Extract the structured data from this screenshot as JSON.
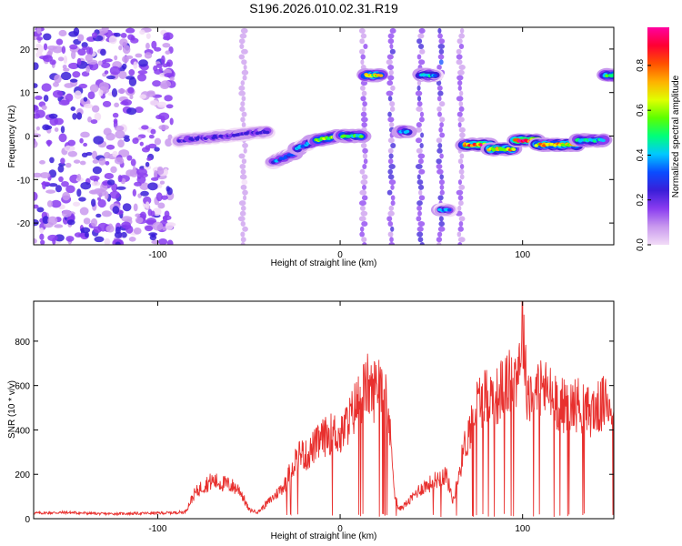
{
  "figure_title": "S196.2026.010.02.31.R19",
  "chart_data": [
    {
      "type": "heatmap",
      "title": "S196.2026.010.02.31.R19",
      "xlabel": "Height of straight line (km)",
      "ylabel": "Frequency (Hz)",
      "xlim": [
        -168,
        150
      ],
      "ylim": [
        -25,
        25
      ],
      "xticks": [
        -100,
        0,
        100
      ],
      "yticks": [
        -20,
        -10,
        0,
        10,
        20
      ],
      "colorbar": {
        "label": "Normalized spectral amplitude",
        "range": [
          0,
          0.97
        ],
        "ticks": [
          0.0,
          0.2,
          0.4,
          0.6,
          0.8
        ],
        "colormap": [
          "#f2dcf7",
          "#c999ee",
          "#8a3cf0",
          "#3a1ed8",
          "#0a4cff",
          "#00c8ff",
          "#00ff7a",
          "#5cff00",
          "#e0ff00",
          "#ffb000",
          "#ff5000",
          "#ff0033",
          "#ff00a0"
        ]
      },
      "noise_region": {
        "x": [
          -168,
          -92
        ],
        "y": [
          -25,
          25
        ],
        "level": 0.1
      },
      "ridges": [
        {
          "x": [
            -88,
            -40
          ],
          "y": [
            -1,
            1
          ],
          "level": 0.22
        },
        {
          "x": [
            -37,
            -25
          ],
          "y": [
            -6,
            -4
          ],
          "level": 0.32
        },
        {
          "x": [
            -24,
            -14
          ],
          "y": [
            -3,
            -1
          ],
          "level": 0.38
        },
        {
          "x": [
            -13,
            -1
          ],
          "y": [
            -1,
            0
          ],
          "level": 0.55
        },
        {
          "x": [
            1,
            12
          ],
          "y": [
            0,
            0
          ],
          "level": 0.5
        },
        {
          "x": [
            14,
            22
          ],
          "y": [
            14,
            14
          ],
          "level": 0.65
        },
        {
          "x": [
            44,
            52
          ],
          "y": [
            14,
            14
          ],
          "level": 0.4
        },
        {
          "x": [
            33,
            37
          ],
          "y": [
            1,
            1
          ],
          "level": 0.38
        },
        {
          "x": [
            55,
            60
          ],
          "y": [
            -17,
            -17
          ],
          "level": 0.35
        },
        {
          "x": [
            68,
            82
          ],
          "y": [
            -2,
            -2
          ],
          "level": 0.82
        },
        {
          "x": [
            82,
            95
          ],
          "y": [
            -3,
            -3
          ],
          "level": 0.7
        },
        {
          "x": [
            96,
            108
          ],
          "y": [
            -1,
            -1
          ],
          "level": 0.85
        },
        {
          "x": [
            108,
            130
          ],
          "y": [
            -2,
            -2
          ],
          "level": 0.7
        },
        {
          "x": [
            130,
            144
          ],
          "y": [
            -1,
            -1
          ],
          "level": 0.45
        },
        {
          "x": [
            145,
            150
          ],
          "y": [
            14,
            14
          ],
          "level": 0.5
        }
      ],
      "vertical_streaks": [
        {
          "x": -53,
          "y": [
            -25,
            25
          ],
          "level": 0.08
        },
        {
          "x": 13,
          "y": [
            -25,
            25
          ],
          "level": 0.12
        },
        {
          "x": 28,
          "y": [
            -25,
            25
          ],
          "level": 0.18
        },
        {
          "x": 44,
          "y": [
            -25,
            25
          ],
          "level": 0.18
        },
        {
          "x": 55,
          "y": [
            -25,
            25
          ],
          "level": 0.2
        },
        {
          "x": 66,
          "y": [
            -25,
            25
          ],
          "level": 0.12
        }
      ]
    },
    {
      "type": "line",
      "xlabel": "Height of straight line (km)",
      "ylabel": "SNR (10 * v/v)",
      "xlim": [
        -168,
        150
      ],
      "ylim": [
        0,
        980
      ],
      "xticks": [
        -100,
        0,
        100
      ],
      "yticks": [
        0,
        200,
        400,
        600,
        800
      ],
      "color": "#e8302e",
      "series": [
        {
          "name": "SNR",
          "x": [
            -168,
            -150,
            -130,
            -110,
            -95,
            -85,
            -80,
            -75,
            -70,
            -65,
            -60,
            -55,
            -50,
            -45,
            -40,
            -35,
            -30,
            -25,
            -22,
            -18,
            -15,
            -12,
            -10,
            -6,
            -2,
            0,
            3,
            6,
            9,
            12,
            15,
            18,
            20,
            22,
            25,
            28,
            30,
            32,
            35,
            38,
            40,
            42,
            45,
            50,
            55,
            58,
            60,
            62,
            65,
            68,
            72,
            75,
            80,
            85,
            90,
            95,
            98,
            100,
            102,
            105,
            110,
            115,
            120,
            125,
            130,
            135,
            140,
            145,
            150
          ],
          "y": [
            25,
            28,
            22,
            24,
            26,
            30,
            110,
            150,
            170,
            160,
            150,
            130,
            40,
            30,
            70,
            110,
            160,
            260,
            300,
            280,
            320,
            340,
            360,
            380,
            390,
            360,
            420,
            460,
            520,
            560,
            600,
            560,
            620,
            640,
            600,
            320,
            120,
            40,
            60,
            80,
            100,
            120,
            140,
            160,
            190,
            200,
            140,
            80,
            200,
            320,
            430,
            520,
            560,
            540,
            600,
            620,
            700,
            900,
            600,
            560,
            600,
            560,
            520,
            500,
            520,
            480,
            490,
            520,
            520
          ]
        }
      ]
    }
  ]
}
